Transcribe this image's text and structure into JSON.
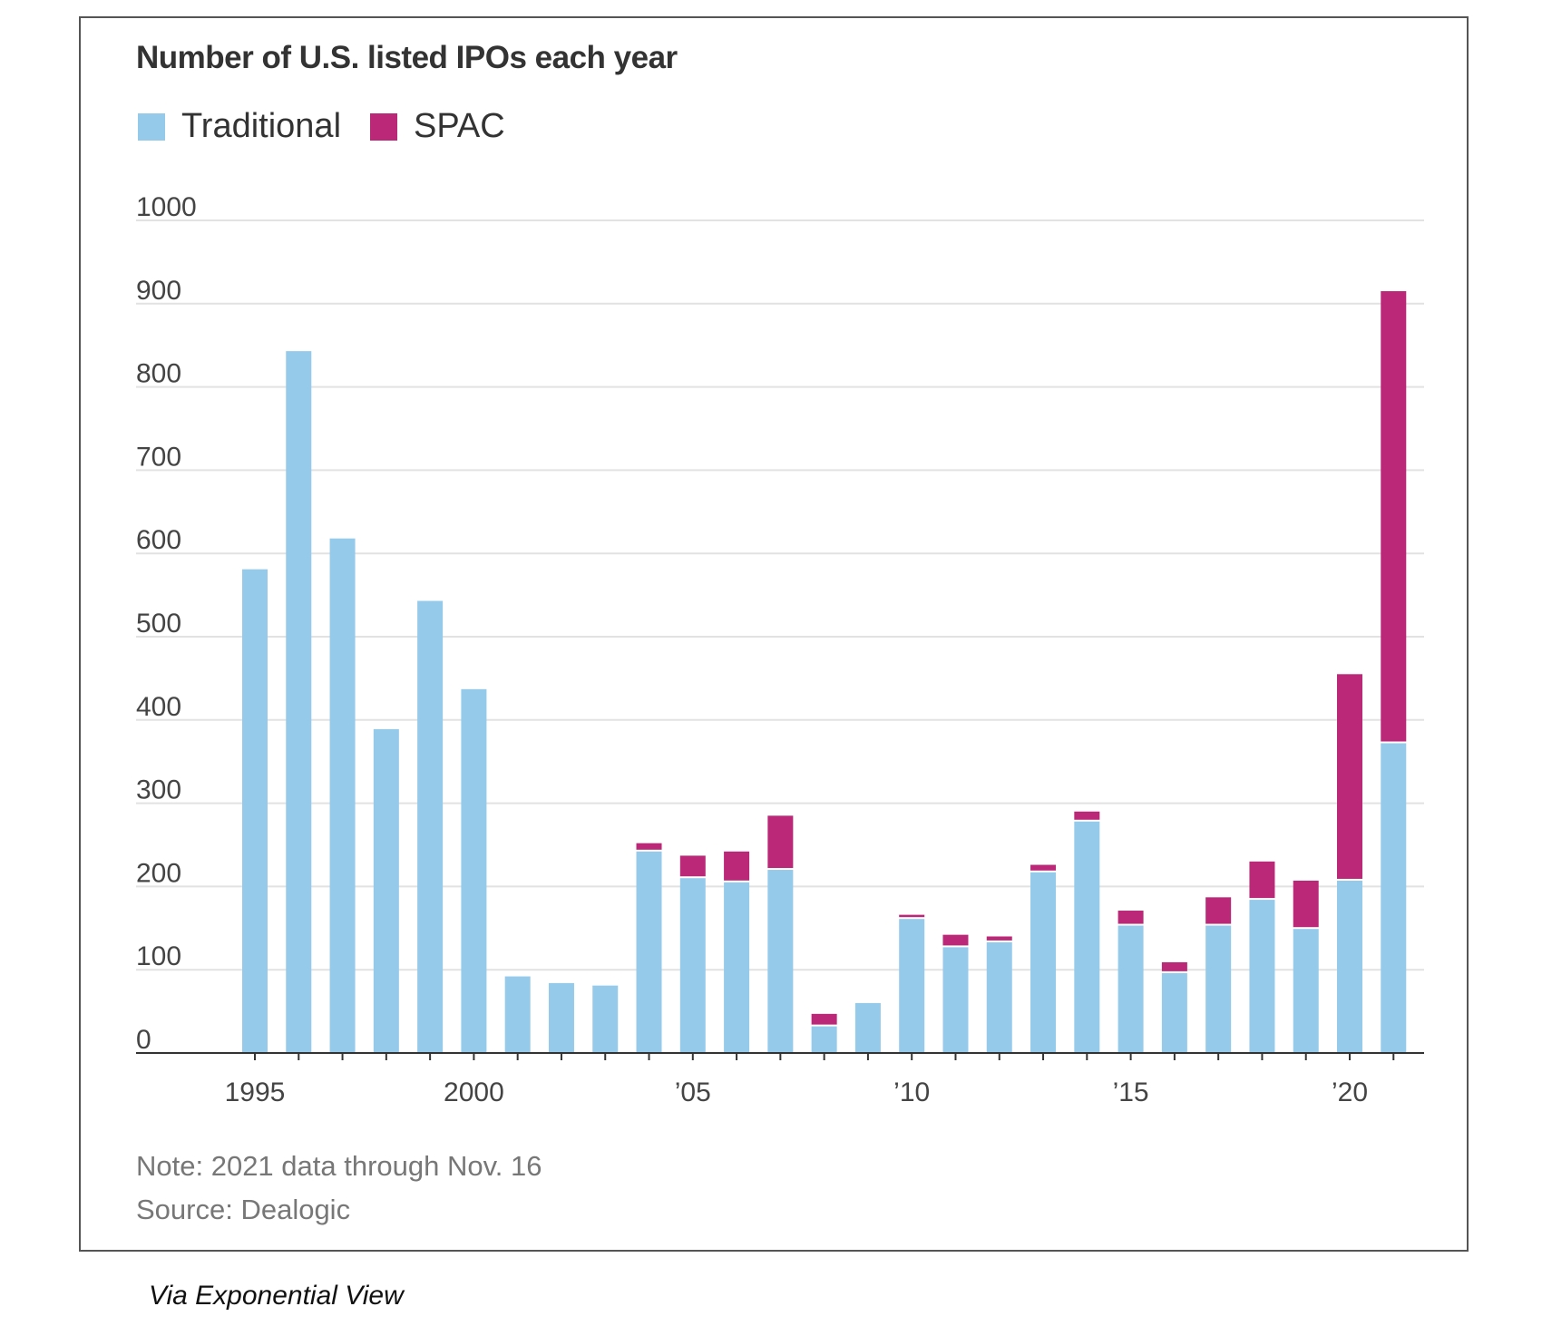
{
  "chart_data": {
    "type": "bar",
    "stacked": true,
    "title": "Number of U.S. listed IPOs each year",
    "xlabel": "",
    "ylabel": "",
    "ylim": [
      0,
      1000
    ],
    "yticks": [
      0,
      100,
      200,
      300,
      400,
      500,
      600,
      700,
      800,
      900,
      1000
    ],
    "ytick_labels": [
      "0",
      "100",
      "200",
      "300",
      "400",
      "500",
      "600",
      "700",
      "800",
      "900",
      "1000"
    ],
    "grid": true,
    "legend_position": "top-left",
    "categories": [
      "1995",
      "1996",
      "1997",
      "1998",
      "1999",
      "2000",
      "2001",
      "2002",
      "2003",
      "2004",
      "2005",
      "2006",
      "2007",
      "2008",
      "2009",
      "2010",
      "2011",
      "2012",
      "2013",
      "2014",
      "2015",
      "2016",
      "2017",
      "2018",
      "2019",
      "2020",
      "2021"
    ],
    "xtick_labels": [
      {
        "year": "1995",
        "label": "1995"
      },
      {
        "year": "2000",
        "label": "2000"
      },
      {
        "year": "2005",
        "label": "’05"
      },
      {
        "year": "2010",
        "label": "’10"
      },
      {
        "year": "2015",
        "label": "’15"
      },
      {
        "year": "2020",
        "label": "’20"
      }
    ],
    "series": [
      {
        "name": "Traditional",
        "color": "#95CAEB",
        "values": [
          581,
          843,
          618,
          389,
          543,
          437,
          92,
          84,
          81,
          242,
          210,
          205,
          220,
          32,
          60,
          161,
          127,
          133,
          217,
          278,
          153,
          96,
          153,
          184,
          149,
          207,
          372
        ]
      },
      {
        "name": "SPAC",
        "color": "#BC2878",
        "values": [
          0,
          0,
          0,
          0,
          0,
          0,
          0,
          0,
          0,
          10,
          27,
          37,
          65,
          15,
          0,
          5,
          15,
          7,
          9,
          12,
          18,
          13,
          34,
          46,
          58,
          248,
          543
        ]
      }
    ]
  },
  "notes": {
    "note": "Note: 2021 data through Nov. 16",
    "source": "Source: Dealogic"
  },
  "credit": "Via Exponential View",
  "colors": {
    "grid": "#E2E2E2",
    "axis": "#333333",
    "tick_text": "#444444",
    "frame": "#555555"
  }
}
